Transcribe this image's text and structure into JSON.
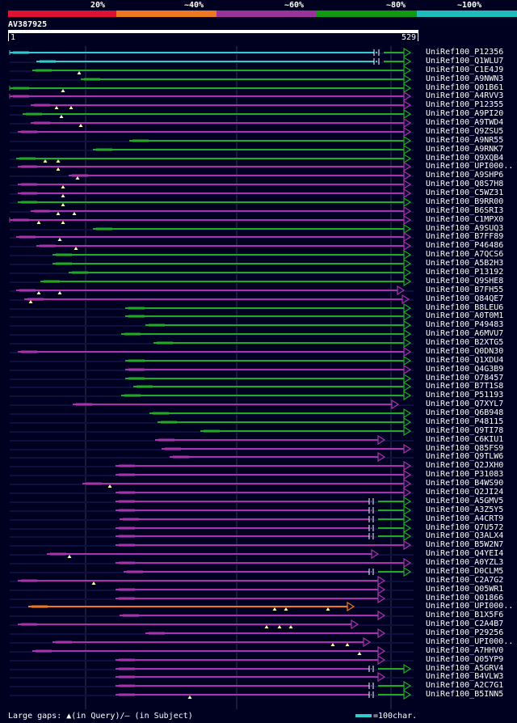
{
  "legend": [
    {
      "label": "20%",
      "color": "#dd1133"
    },
    {
      "label": "~40%",
      "color": "#ee7722"
    },
    {
      "label": "~60%",
      "color": "#993399"
    },
    {
      "label": "~80%",
      "color": "#119911"
    },
    {
      "label": "~100%",
      "color": "#22bbbb"
    }
  ],
  "query": {
    "name": "AV387925",
    "start": "1",
    "end": "529",
    "length": 529
  },
  "colors": {
    "green": "#22aa22",
    "purple": "#aa33aa",
    "cyan": "#33cccc",
    "orange": "#ee7722",
    "navy": "#101040",
    "grid": "#333355"
  },
  "grid_positions": [
    106,
    293,
    484
  ],
  "hits": [
    {
      "name": "UniRef100_P12356",
      "color": "cyan",
      "q": [
        12,
        463
      ],
      "mid": [
        475,
        500
      ],
      "s": [
        40,
        480
      ],
      "gaps": []
    },
    {
      "name": "UniRef100_Q1WLU7",
      "color": "cyan",
      "q": [
        45,
        463
      ],
      "mid": [
        475,
        500
      ],
      "s": [
        80,
        480
      ],
      "gaps": []
    },
    {
      "name": "UniRef100_C1E4J9",
      "color": "green",
      "q": [
        40,
        500
      ],
      "s": [
        40,
        500
      ],
      "gaps": [
        98
      ]
    },
    {
      "name": "UniRef100_A9NWN3",
      "color": "green",
      "q": [
        100,
        500
      ],
      "s": [
        100,
        500
      ],
      "gaps": []
    },
    {
      "name": "UniRef100_Q01B61",
      "color": "green",
      "q": [
        12,
        500
      ],
      "s": [
        12,
        500
      ],
      "gaps": [
        78
      ]
    },
    {
      "name": "UniRef100_A4RVV3",
      "color": "purple",
      "q": [
        12,
        500
      ],
      "s": [
        12,
        500
      ],
      "gaps": []
    },
    {
      "name": "UniRef100_P12355",
      "color": "purple",
      "q": [
        38,
        500
      ],
      "s": [
        38,
        500
      ],
      "gaps": [
        70,
        88
      ]
    },
    {
      "name": "UniRef100_A9PI20",
      "color": "green",
      "q": [
        28,
        500
      ],
      "s": [
        28,
        500
      ],
      "gaps": [
        76
      ]
    },
    {
      "name": "UniRef100_A9TWD4",
      "color": "purple",
      "q": [
        38,
        500
      ],
      "s": [
        38,
        500
      ],
      "gaps": [
        100
      ]
    },
    {
      "name": "UniRef100_Q9ZSU5",
      "color": "purple",
      "q": [
        22,
        500
      ],
      "s": [
        22,
        500
      ],
      "gaps": []
    },
    {
      "name": "UniRef100_A9NR55",
      "color": "green",
      "q": [
        160,
        500
      ],
      "s": [
        160,
        500
      ],
      "gaps": []
    },
    {
      "name": "UniRef100_A9RNK7",
      "color": "green",
      "q": [
        115,
        500
      ],
      "s": [
        115,
        500
      ],
      "gaps": []
    },
    {
      "name": "UniRef100_Q9XQB4",
      "color": "green",
      "q": [
        20,
        500
      ],
      "s": [
        20,
        500
      ],
      "gaps": [
        56,
        72
      ]
    },
    {
      "name": "UniRef100_UPI000..",
      "color": "purple",
      "q": [
        22,
        500
      ],
      "s": [
        22,
        500
      ],
      "gaps": [
        72
      ]
    },
    {
      "name": "UniRef100_A9SHP6",
      "color": "purple",
      "q": [
        85,
        500
      ],
      "s": [
        85,
        500
      ],
      "gaps": [
        96
      ]
    },
    {
      "name": "UniRef100_Q8S7H8",
      "color": "purple",
      "q": [
        22,
        500
      ],
      "s": [
        22,
        500
      ],
      "gaps": [
        78
      ]
    },
    {
      "name": "UniRef100_C5WZ31",
      "color": "purple",
      "q": [
        22,
        500
      ],
      "s": [
        22,
        500
      ],
      "gaps": [
        78
      ]
    },
    {
      "name": "UniRef100_B9RR00",
      "color": "green",
      "q": [
        22,
        500
      ],
      "s": [
        22,
        500
      ],
      "gaps": [
        78
      ]
    },
    {
      "name": "UniRef100_B6SRI3",
      "color": "purple",
      "q": [
        38,
        500
      ],
      "s": [
        38,
        500
      ],
      "gaps": [
        72,
        92
      ]
    },
    {
      "name": "UniRef100_C1MPX0",
      "color": "purple",
      "q": [
        12,
        500
      ],
      "s": [
        12,
        500
      ],
      "gaps": [
        48,
        78
      ]
    },
    {
      "name": "UniRef100_A9SUQ3",
      "color": "green",
      "q": [
        115,
        500
      ],
      "s": [
        115,
        500
      ],
      "gaps": []
    },
    {
      "name": "UniRef100_B7FF89",
      "color": "purple",
      "q": [
        20,
        500
      ],
      "s": [
        20,
        500
      ],
      "gaps": [
        74
      ]
    },
    {
      "name": "UniRef100_P46486",
      "color": "purple",
      "q": [
        45,
        500
      ],
      "s": [
        45,
        500
      ],
      "gaps": [
        94
      ]
    },
    {
      "name": "UniRef100_A7QCS6",
      "color": "green",
      "q": [
        65,
        500
      ],
      "s": [
        65,
        500
      ],
      "gaps": []
    },
    {
      "name": "UniRef100_A5B2H3",
      "color": "green",
      "q": [
        65,
        500
      ],
      "s": [
        65,
        500
      ],
      "gaps": []
    },
    {
      "name": "UniRef100_P13192",
      "color": "green",
      "q": [
        85,
        500
      ],
      "s": [
        85,
        500
      ],
      "gaps": []
    },
    {
      "name": "UniRef100_Q9SHE8",
      "color": "green",
      "q": [
        50,
        500
      ],
      "s": [
        50,
        500
      ],
      "gaps": []
    },
    {
      "name": "UniRef100_B7FH55",
      "color": "purple",
      "q": [
        20,
        492
      ],
      "s": [
        20,
        492
      ],
      "gaps": [
        48,
        74
      ]
    },
    {
      "name": "UniRef100_Q84QE7",
      "color": "purple",
      "q": [
        30,
        498
      ],
      "s": [
        30,
        498
      ],
      "gaps": [
        38
      ]
    },
    {
      "name": "UniRef100_B8LEU6",
      "color": "green",
      "q": [
        155,
        500
      ],
      "s": [
        155,
        500
      ],
      "gaps": []
    },
    {
      "name": "UniRef100_A0T0M1",
      "color": "green",
      "q": [
        155,
        500
      ],
      "s": [
        155,
        500
      ],
      "gaps": []
    },
    {
      "name": "UniRef100_P49483",
      "color": "green",
      "q": [
        180,
        500
      ],
      "s": [
        180,
        500
      ],
      "gaps": []
    },
    {
      "name": "UniRef100_A6MVU7",
      "color": "green",
      "q": [
        150,
        500
      ],
      "s": [
        150,
        500
      ],
      "gaps": []
    },
    {
      "name": "UniRef100_B2XTG5",
      "color": "green",
      "q": [
        190,
        500
      ],
      "s": [
        190,
        500
      ],
      "gaps": []
    },
    {
      "name": "UniRef100_Q0DN30",
      "color": "purple",
      "q": [
        22,
        500
      ],
      "s": [
        22,
        500
      ],
      "gaps": []
    },
    {
      "name": "UniRef100_Q1XDU4",
      "color": "green",
      "q": [
        155,
        500
      ],
      "s": [
        155,
        500
      ],
      "gaps": []
    },
    {
      "name": "UniRef100_Q4G3B9",
      "color": "purple",
      "q": [
        155,
        500
      ],
      "s": [
        155,
        500
      ],
      "gaps": []
    },
    {
      "name": "UniRef100_O78457",
      "color": "green",
      "q": [
        155,
        500
      ],
      "s": [
        155,
        500
      ],
      "gaps": []
    },
    {
      "name": "UniRef100_B7T1S8",
      "color": "green",
      "q": [
        165,
        500
      ],
      "s": [
        165,
        500
      ],
      "gaps": []
    },
    {
      "name": "UniRef100_P51193",
      "color": "green",
      "q": [
        150,
        500
      ],
      "s": [
        150,
        500
      ],
      "gaps": []
    },
    {
      "name": "UniRef100_Q7XYL7",
      "color": "purple",
      "q": [
        90,
        485
      ],
      "s": [
        90,
        485
      ],
      "gaps": []
    },
    {
      "name": "UniRef100_Q6B948",
      "color": "green",
      "q": [
        185,
        500
      ],
      "s": [
        185,
        500
      ],
      "gaps": []
    },
    {
      "name": "UniRef100_P48115",
      "color": "green",
      "q": [
        195,
        500
      ],
      "s": [
        195,
        500
      ],
      "gaps": []
    },
    {
      "name": "UniRef100_Q9TI78",
      "color": "green",
      "q": [
        248,
        500
      ],
      "s": [
        248,
        500
      ],
      "gaps": []
    },
    {
      "name": "UniRef100_C6KIU1",
      "color": "purple",
      "q": [
        192,
        468
      ],
      "s": [
        192,
        468
      ],
      "gaps": []
    },
    {
      "name": "UniRef100_Q85FS9",
      "color": "purple",
      "q": [
        200,
        500
      ],
      "s": [
        200,
        500
      ],
      "gaps": []
    },
    {
      "name": "UniRef100_Q9TLW6",
      "color": "purple",
      "q": [
        210,
        468
      ],
      "s": [
        210,
        468
      ],
      "gaps": []
    },
    {
      "name": "UniRef100_Q2JXH0",
      "color": "purple",
      "q": [
        143,
        500
      ],
      "s": [
        143,
        500
      ],
      "gaps": []
    },
    {
      "name": "UniRef100_P31083",
      "color": "purple",
      "q": [
        143,
        500
      ],
      "s": [
        143,
        500
      ],
      "gaps": []
    },
    {
      "name": "UniRef100_B4WS90",
      "color": "purple",
      "q": [
        102,
        500
      ],
      "s": [
        102,
        500
      ],
      "gaps": [
        136
      ]
    },
    {
      "name": "UniRef100_Q2JI24",
      "color": "purple",
      "q": [
        143,
        500
      ],
      "s": [
        143,
        500
      ],
      "gaps": []
    },
    {
      "name": "UniRef100_A5GMV5",
      "color": "purple",
      "q": [
        143,
        457
      ],
      "mid": [
        468,
        500
      ],
      "s": [
        143,
        500
      ],
      "gaps": [],
      "tail": "green"
    },
    {
      "name": "UniRef100_A3Z5Y5",
      "color": "purple",
      "q": [
        143,
        457
      ],
      "mid": [
        468,
        500
      ],
      "s": [
        143,
        500
      ],
      "gaps": [],
      "tail": "green"
    },
    {
      "name": "UniRef100_A4CRT9",
      "color": "purple",
      "q": [
        148,
        457
      ],
      "mid": [
        468,
        500
      ],
      "s": [
        148,
        500
      ],
      "gaps": [],
      "tail": "green"
    },
    {
      "name": "UniRef100_Q7U572",
      "color": "purple",
      "q": [
        143,
        457
      ],
      "mid": [
        468,
        500
      ],
      "s": [
        143,
        500
      ],
      "gaps": [],
      "tail": "green"
    },
    {
      "name": "UniRef100_Q3ALX4",
      "color": "purple",
      "q": [
        143,
        457
      ],
      "mid": [
        468,
        500
      ],
      "s": [
        143,
        500
      ],
      "gaps": [],
      "tail": "green"
    },
    {
      "name": "UniRef100_B5W2N7",
      "color": "purple",
      "q": [
        143,
        500
      ],
      "s": [
        143,
        500
      ],
      "gaps": []
    },
    {
      "name": "UniRef100_Q4YEI4",
      "color": "purple",
      "q": [
        58,
        460
      ],
      "s": [
        58,
        460
      ],
      "gaps": [
        86
      ]
    },
    {
      "name": "UniRef100_A0YZL3",
      "color": "purple",
      "q": [
        143,
        500
      ],
      "s": [
        143,
        500
      ],
      "gaps": []
    },
    {
      "name": "UniRef100_D0CLM5",
      "color": "purple",
      "q": [
        153,
        457
      ],
      "mid": [
        468,
        500
      ],
      "s": [
        153,
        500
      ],
      "gaps": [],
      "tail": "green"
    },
    {
      "name": "UniRef100_C2A7G2",
      "color": "purple",
      "q": [
        22,
        468
      ],
      "s": [
        22,
        468
      ],
      "gaps": [
        116
      ]
    },
    {
      "name": "UniRef100_Q05WR1",
      "color": "purple",
      "q": [
        143,
        468
      ],
      "s": [
        143,
        468
      ],
      "gaps": []
    },
    {
      "name": "UniRef100_Q01866",
      "color": "purple",
      "q": [
        143,
        468
      ],
      "s": [
        143,
        468
      ],
      "gaps": []
    },
    {
      "name": "UniRef100_UPI000..",
      "color": "orange",
      "q": [
        35,
        430
      ],
      "s": [
        35,
        430
      ],
      "gaps": [
        340,
        354,
        406
      ]
    },
    {
      "name": "UniRef100_B1X5F6",
      "color": "purple",
      "q": [
        148,
        468
      ],
      "s": [
        148,
        468
      ],
      "gaps": []
    },
    {
      "name": "UniRef100_C2A4B7",
      "color": "purple",
      "q": [
        22,
        435
      ],
      "s": [
        22,
        435
      ],
      "gaps": [
        330,
        346,
        360
      ]
    },
    {
      "name": "UniRef100_P29256",
      "color": "purple",
      "q": [
        180,
        468
      ],
      "s": [
        180,
        468
      ],
      "gaps": []
    },
    {
      "name": "UniRef100_UPI000..",
      "color": "purple",
      "q": [
        65,
        450
      ],
      "s": [
        65,
        450
      ],
      "gaps": [
        412,
        430
      ]
    },
    {
      "name": "UniRef100_A7HHV0",
      "color": "purple",
      "q": [
        40,
        468
      ],
      "s": [
        40,
        468
      ],
      "gaps": [
        445
      ]
    },
    {
      "name": "UniRef100_Q05YP9",
      "color": "purple",
      "q": [
        143,
        468
      ],
      "s": [
        143,
        468
      ],
      "gaps": []
    },
    {
      "name": "UniRef100_A5GRV4",
      "color": "purple",
      "q": [
        143,
        457
      ],
      "mid": [
        468,
        500
      ],
      "s": [
        143,
        500
      ],
      "gaps": [],
      "tail": "green"
    },
    {
      "name": "UniRef100_B4VLW3",
      "color": "purple",
      "q": [
        143,
        468
      ],
      "s": [
        143,
        500
      ],
      "gaps": []
    },
    {
      "name": "UniRef100_A2C7G1",
      "color": "purple",
      "q": [
        143,
        457
      ],
      "mid": [
        468,
        500
      ],
      "s": [
        143,
        500
      ],
      "gaps": [],
      "tail": "green"
    },
    {
      "name": "UniRef100_B5INN5",
      "color": "purple",
      "q": [
        143,
        457
      ],
      "mid": [
        468,
        500
      ],
      "s": [
        143,
        500
      ],
      "gaps": [
        235
      ],
      "tail": "green"
    }
  ],
  "footer": {
    "gaps_label": "Large gaps: ▲(in Query)/— (in Subject)",
    "scale_label": "=100char."
  }
}
